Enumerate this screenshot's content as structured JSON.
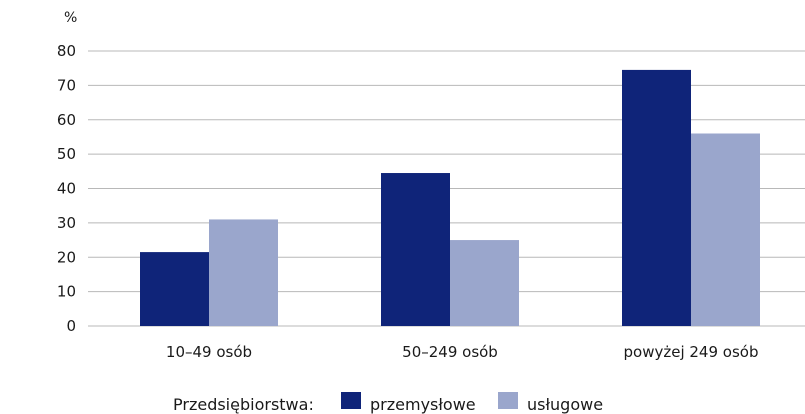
{
  "chart_data": {
    "type": "bar",
    "unit_label": "%",
    "categories": [
      "10–49 osób",
      "50–249 osób",
      "powyżej 249 osób"
    ],
    "series": [
      {
        "name": "przemysłowe",
        "color": "#0f2479",
        "values": [
          21.5,
          44.5,
          74.5
        ]
      },
      {
        "name": "usługowe",
        "color": "#9aa6cc",
        "values": [
          31,
          25,
          56
        ]
      }
    ],
    "ylim": [
      0,
      80
    ],
    "yticks": [
      0,
      10,
      20,
      30,
      40,
      50,
      60,
      70,
      80
    ],
    "grid": true,
    "legend": {
      "title": "Przedsiębiorstwa:",
      "position": "bottom-center"
    }
  }
}
